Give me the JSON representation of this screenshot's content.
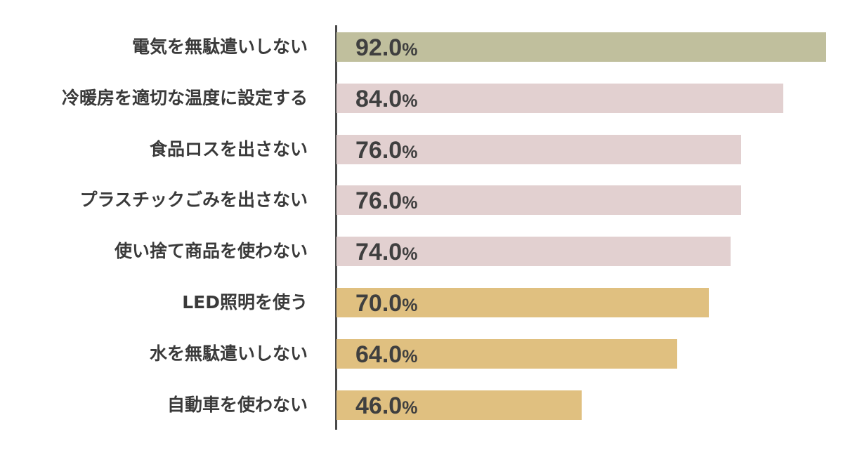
{
  "chart_data": {
    "type": "bar",
    "orientation": "horizontal",
    "categories": [
      "電気を無駄遣いしない",
      "冷暖房を適切な温度に設定する",
      "食品ロスを出さない",
      "プラスチックごみを出さない",
      "使い捨て商品を使わない",
      "LED照明を使う",
      "水を無駄遣いしない",
      "自動車を使わない"
    ],
    "values": [
      92.0,
      84.0,
      76.0,
      76.0,
      74.0,
      70.0,
      64.0,
      46.0
    ],
    "value_labels": [
      "92.0",
      "84.0",
      "76.0",
      "76.0",
      "74.0",
      "70.0",
      "64.0",
      "46.0"
    ],
    "unit": "%",
    "colors": [
      "#c0bf9d",
      "#e2d0d0",
      "#e2d0d0",
      "#e2d0d0",
      "#e2d0d0",
      "#e0c080",
      "#e0c080",
      "#e0c080"
    ],
    "xlim": [
      0,
      92
    ],
    "grid": false,
    "legend": "none",
    "title": "",
    "xlabel": "",
    "ylabel": ""
  }
}
